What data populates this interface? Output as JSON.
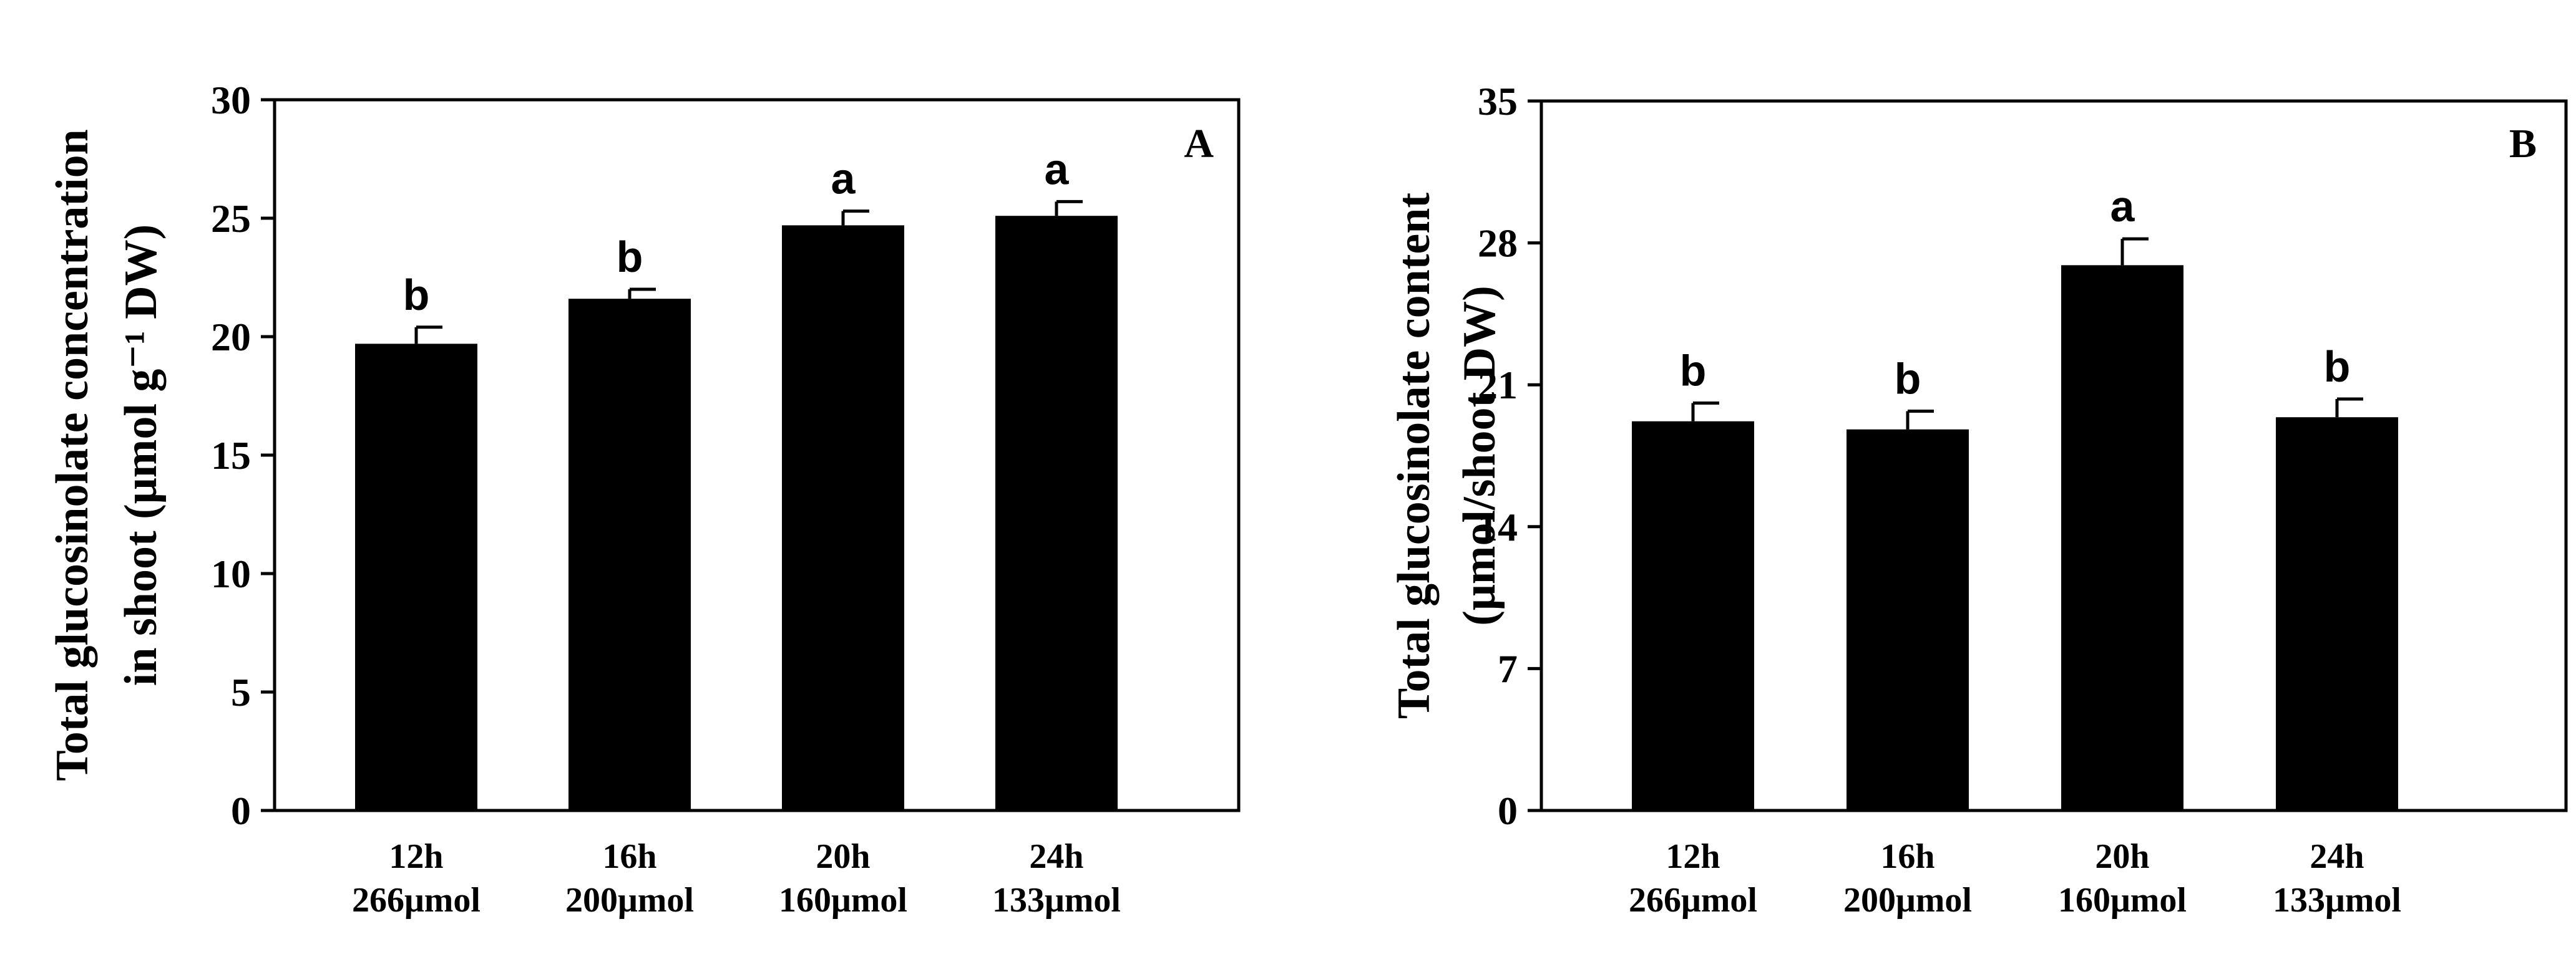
{
  "chart_data": [
    {
      "type": "bar",
      "panel_label": "A",
      "title": "",
      "xlabel": "",
      "ylabel_lines": [
        "Total glucosinolate concentration",
        "in shoot (μmol g⁻¹ DW)"
      ],
      "categories": [
        [
          "12h",
          "266μmol"
        ],
        [
          "16h",
          "200μmol"
        ],
        [
          "20h",
          "160μmol"
        ],
        [
          "24h",
          "133μmol"
        ]
      ],
      "values": [
        19.7,
        21.6,
        24.7,
        25.1
      ],
      "errors": [
        0.7,
        0.4,
        0.6,
        0.6
      ],
      "significance": [
        "b",
        "b",
        "a",
        "a"
      ],
      "ylim": [
        0,
        30
      ],
      "yticks": [
        0,
        5,
        10,
        15,
        20,
        25,
        30
      ],
      "bar_color": "#000000"
    },
    {
      "type": "bar",
      "panel_label": "B",
      "title": "",
      "xlabel": "",
      "ylabel_lines": [
        "Total glucosinolate content",
        "(μmol/shoot DW)"
      ],
      "categories": [
        [
          "12h",
          "266μmol"
        ],
        [
          "16h",
          "200μmol"
        ],
        [
          "20h",
          "160μmol"
        ],
        [
          "24h",
          "133μmol"
        ]
      ],
      "values": [
        19.2,
        18.8,
        26.9,
        19.4
      ],
      "errors": [
        0.9,
        0.9,
        1.3,
        0.9
      ],
      "significance": [
        "b",
        "b",
        "a",
        "b"
      ],
      "ylim": [
        0,
        35
      ],
      "yticks": [
        0,
        7,
        14,
        21,
        28,
        35
      ],
      "bar_color": "#000000"
    }
  ]
}
